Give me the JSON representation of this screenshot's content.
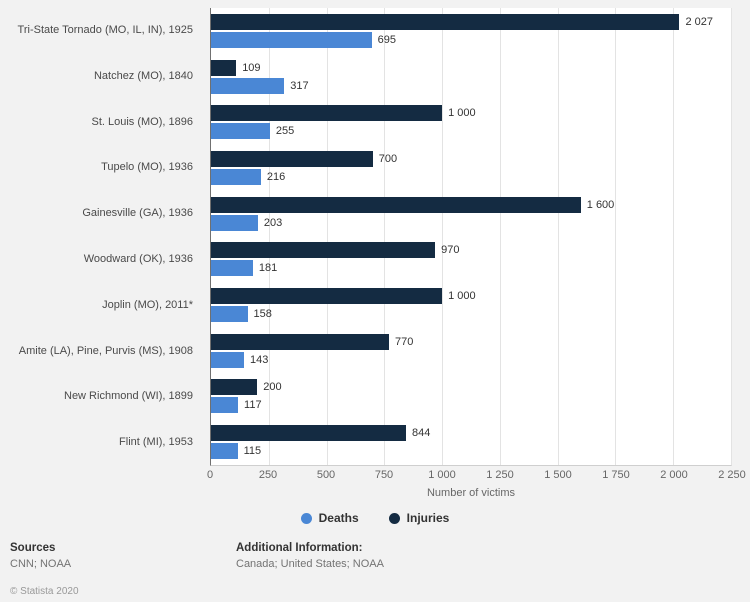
{
  "colors": {
    "background": "#f2f2f2",
    "plot_background": "#ffffff",
    "deaths": "#4a87d5",
    "injuries": "#142b42",
    "gridline": "#e3e3e3",
    "axis_line": "#707070"
  },
  "chart_data": {
    "type": "bar",
    "orientation": "horizontal",
    "title": "",
    "xlabel": "Number of victims",
    "ylabel": "",
    "xlim": [
      0,
      2250
    ],
    "grid": true,
    "legend_position": "bottom-center",
    "xticks": [
      "0",
      "250",
      "500",
      "750",
      "1 000",
      "1 250",
      "1 500",
      "1 750",
      "2 000",
      "2 250"
    ],
    "xtick_values": [
      0,
      250,
      500,
      750,
      1000,
      1250,
      1500,
      1750,
      2000,
      2250
    ],
    "categories": [
      "Tri-State Tornado (MO, IL, IN), 1925",
      "Natchez (MO), 1840",
      "St. Louis (MO), 1896",
      "Tupelo (MO), 1936",
      "Gainesville (GA), 1936",
      "Woodward (OK), 1936",
      "Joplin (MO), 2011*",
      "Amite (LA), Pine, Purvis (MS), 1908",
      "New Richmond (WI), 1899",
      "Flint (MI), 1953"
    ],
    "series": [
      {
        "name": "Deaths",
        "color_key": "deaths",
        "values": [
          695,
          317,
          255,
          216,
          203,
          181,
          158,
          143,
          117,
          115
        ]
      },
      {
        "name": "Injuries",
        "color_key": "injuries",
        "values": [
          2027,
          109,
          1000,
          700,
          1600,
          970,
          1000,
          770,
          200,
          844
        ]
      }
    ],
    "rows": [
      {
        "category": "Tri-State Tornado (MO, IL, IN), 1925",
        "injuries": 2027,
        "injuries_label": "2 027",
        "deaths": 695,
        "deaths_label": "695"
      },
      {
        "category": "Natchez (MO), 1840",
        "injuries": 109,
        "injuries_label": "109",
        "deaths": 317,
        "deaths_label": "317"
      },
      {
        "category": "St. Louis (MO), 1896",
        "injuries": 1000,
        "injuries_label": "1 000",
        "deaths": 255,
        "deaths_label": "255"
      },
      {
        "category": "Tupelo (MO), 1936",
        "injuries": 700,
        "injuries_label": "700",
        "deaths": 216,
        "deaths_label": "216"
      },
      {
        "category": "Gainesville (GA), 1936",
        "injuries": 1600,
        "injuries_label": "1 600",
        "deaths": 203,
        "deaths_label": "203"
      },
      {
        "category": "Woodward (OK), 1936",
        "injuries": 970,
        "injuries_label": "970",
        "deaths": 181,
        "deaths_label": "181"
      },
      {
        "category": "Joplin (MO), 2011*",
        "injuries": 1000,
        "injuries_label": "1 000",
        "deaths": 158,
        "deaths_label": "158"
      },
      {
        "category": "Amite (LA), Pine, Purvis (MS), 1908",
        "injuries": 770,
        "injuries_label": "770",
        "deaths": 143,
        "deaths_label": "143"
      },
      {
        "category": "New Richmond (WI), 1899",
        "injuries": 200,
        "injuries_label": "200",
        "deaths": 117,
        "deaths_label": "117"
      },
      {
        "category": "Flint (MI), 1953",
        "injuries": 844,
        "injuries_label": "844",
        "deaths": 115,
        "deaths_label": "115"
      }
    ],
    "legend": [
      {
        "label": "Deaths",
        "color": "deaths"
      },
      {
        "label": "Injuries",
        "color": "injuries"
      }
    ]
  },
  "footer": {
    "sources_heading": "Sources",
    "sources_text": "CNN; NOAA",
    "additional_heading": "Additional Information:",
    "additional_text": "Canada; United States; NOAA",
    "copyright": "© Statista 2020"
  }
}
